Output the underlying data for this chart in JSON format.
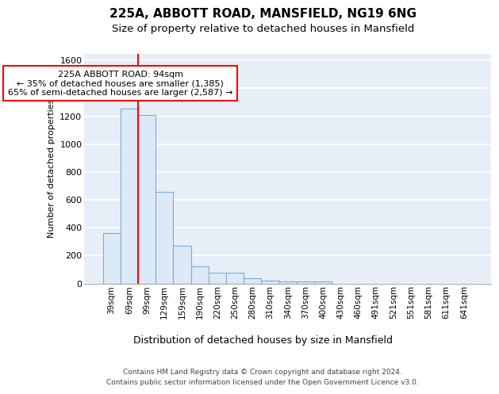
{
  "title_line1": "225A, ABBOTT ROAD, MANSFIELD, NG19 6NG",
  "title_line2": "Size of property relative to detached houses in Mansfield",
  "xlabel": "Distribution of detached houses by size in Mansfield",
  "ylabel": "Number of detached properties",
  "categories": [
    "39sqm",
    "69sqm",
    "99sqm",
    "129sqm",
    "159sqm",
    "190sqm",
    "220sqm",
    "250sqm",
    "280sqm",
    "310sqm",
    "340sqm",
    "370sqm",
    "400sqm",
    "430sqm",
    "460sqm",
    "491sqm",
    "521sqm",
    "551sqm",
    "581sqm",
    "611sqm",
    "641sqm"
  ],
  "values": [
    360,
    1255,
    1210,
    660,
    270,
    120,
    75,
    75,
    38,
    22,
    15,
    15,
    15,
    0,
    0,
    0,
    0,
    0,
    0,
    0,
    0
  ],
  "bar_facecolor": "#dce9f7",
  "bar_edgecolor": "#7aadd4",
  "annotation_text": "225A ABBOTT ROAD: 94sqm\n← 35% of detached houses are smaller (1,385)\n65% of semi-detached houses are larger (2,587) →",
  "annotation_box_facecolor": "white",
  "annotation_box_edgecolor": "red",
  "redline_color": "red",
  "ylim": [
    0,
    1650
  ],
  "yticks": [
    0,
    200,
    400,
    600,
    800,
    1000,
    1200,
    1400,
    1600
  ],
  "background_color": "#e8eef8",
  "grid_color": "white",
  "footer_line1": "Contains HM Land Registry data © Crown copyright and database right 2024.",
  "footer_line2": "Contains public sector information licensed under the Open Government Licence v3.0.",
  "title1_fontsize": 11,
  "title2_fontsize": 9.5,
  "ylabel_fontsize": 8,
  "xlabel_fontsize": 9,
  "ytick_fontsize": 8,
  "xtick_fontsize": 7.5,
  "footer_fontsize": 6.5,
  "ann_fontsize": 8
}
